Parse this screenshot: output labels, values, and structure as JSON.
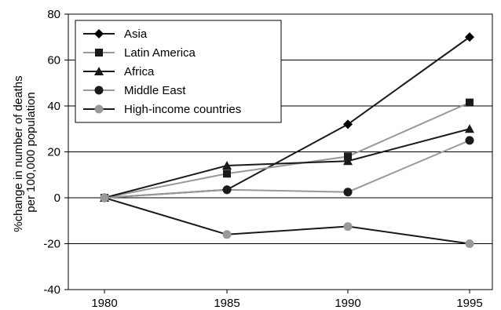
{
  "chart_data": {
    "type": "line",
    "x": [
      1980,
      1985,
      1990,
      1995
    ],
    "xlabel": "",
    "ylabel": "%change in number of deaths per 100,000 population",
    "ylabel_lines": [
      "%change in number of deaths",
      "per 100,000 population"
    ],
    "ylim": [
      -40,
      80
    ],
    "yticks": [
      -40,
      -20,
      0,
      20,
      40,
      60,
      80
    ],
    "grid": "horizontal",
    "legend_position": "top-left",
    "series": [
      {
        "name": "Asia",
        "marker": "diamond",
        "line_color": "#1a1a1a",
        "marker_color": "#000000",
        "values": [
          0,
          3.5,
          32,
          70
        ]
      },
      {
        "name": "Latin America",
        "marker": "square",
        "line_color": "#999999",
        "marker_color": "#1a1a1a",
        "values": [
          0,
          10.5,
          18,
          41.5
        ]
      },
      {
        "name": "Africa",
        "marker": "triangle",
        "line_color": "#1a1a1a",
        "marker_color": "#1a1a1a",
        "values": [
          0,
          14,
          16,
          30
        ]
      },
      {
        "name": "Middle East",
        "marker": "circle",
        "line_color": "#999999",
        "marker_color": "#1a1a1a",
        "values": [
          0,
          3.5,
          2.5,
          25
        ]
      },
      {
        "name": "High-income countries",
        "marker": "circle",
        "line_color": "#1a1a1a",
        "marker_color": "#999999",
        "values": [
          0,
          -16,
          -12.5,
          -20
        ]
      }
    ]
  }
}
